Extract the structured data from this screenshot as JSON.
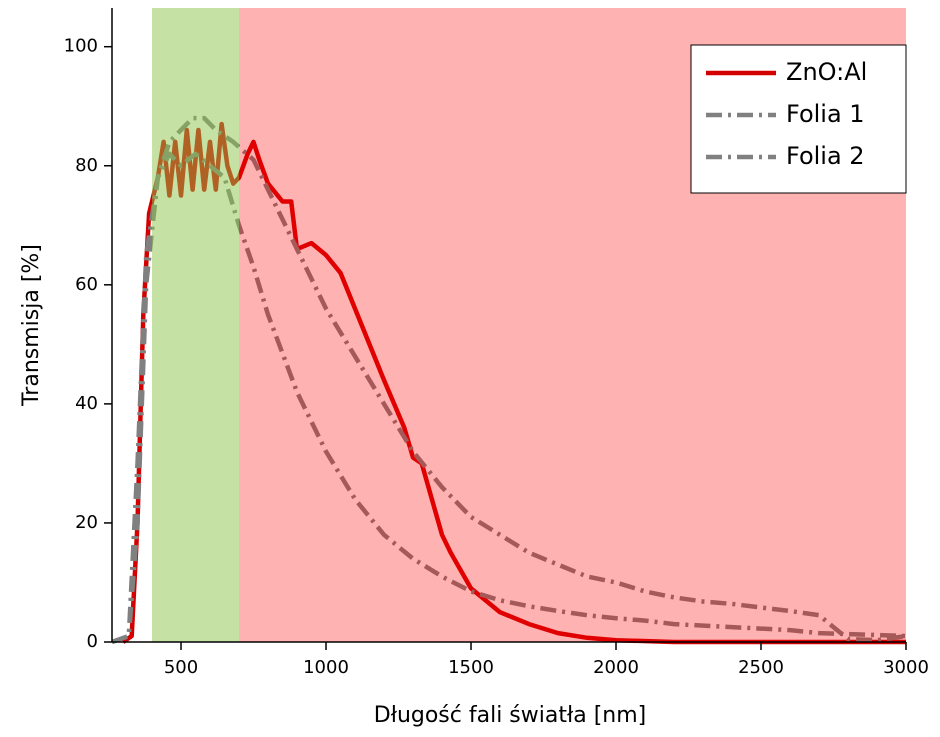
{
  "chart_data": {
    "type": "line",
    "x_label": "Długość fali światła [nm]",
    "y_label": "Transmisja [%]",
    "xlim": [
      262,
      3000
    ],
    "ylim": [
      0,
      106.5
    ],
    "xticks": [
      500,
      1000,
      1500,
      2000,
      2500,
      3000
    ],
    "yticks": [
      0,
      20,
      40,
      60,
      80,
      100
    ],
    "bands": [
      {
        "from": 400,
        "to": 700,
        "color": "#8bc34a"
      },
      {
        "from": 700,
        "to": 3000,
        "color": "#ff0000"
      }
    ],
    "legend": "upper right",
    "series": [
      {
        "name": "ZnO:Al",
        "color": "#d40000",
        "linestyle": "solid",
        "x": [
          300,
          330,
          350,
          370,
          390,
          400,
          420,
          440,
          460,
          480,
          500,
          520,
          540,
          560,
          580,
          600,
          620,
          640,
          660,
          680,
          700,
          730,
          750,
          770,
          800,
          850,
          880,
          900,
          950,
          1000,
          1050,
          1100,
          1200,
          1270,
          1300,
          1330,
          1400,
          1430,
          1500,
          1600,
          1700,
          1800,
          1900,
          2000,
          2200,
          3000
        ],
        "values": [
          0,
          1,
          20,
          55,
          72,
          74,
          78,
          84,
          75,
          84,
          75,
          86,
          76,
          86,
          76,
          84,
          76,
          87,
          80,
          77,
          78,
          82,
          84,
          81,
          77,
          74,
          74,
          66,
          67,
          65,
          62,
          56,
          44,
          36,
          31,
          30,
          18,
          15,
          9,
          5,
          3,
          1.5,
          0.7,
          0.3,
          0,
          0
        ]
      },
      {
        "name": "Folia 1",
        "color": "#808080",
        "linestyle": "dashdot",
        "x": [
          262,
          320,
          350,
          380,
          420,
          460,
          500,
          540,
          580,
          620,
          680,
          750,
          800,
          900,
          1000,
          1100,
          1200,
          1300,
          1400,
          1500,
          1600,
          1700,
          1800,
          1900,
          2000,
          2100,
          2200,
          2300,
          2400,
          2500,
          2600,
          2700,
          2750,
          2800,
          2900,
          3000
        ],
        "values": [
          0,
          1,
          20,
          60,
          78,
          84,
          86,
          88,
          88,
          86,
          84,
          81,
          76,
          66,
          56,
          48,
          40,
          32,
          26,
          21,
          18,
          15,
          13,
          11,
          10,
          8.5,
          7.5,
          6.8,
          6.4,
          5.8,
          5.2,
          4.5,
          2.5,
          0.5,
          0.3,
          1
        ]
      },
      {
        "name": "Folia 2",
        "color": "#808080",
        "linestyle": "dashdot",
        "x": [
          262,
          320,
          350,
          380,
          420,
          460,
          500,
          550,
          600,
          650,
          700,
          750,
          800,
          900,
          1000,
          1100,
          1200,
          1300,
          1400,
          1500,
          1600,
          1700,
          1800,
          1900,
          2000,
          2100,
          2200,
          2400,
          2600,
          2700,
          3000
        ],
        "values": [
          0,
          1,
          30,
          65,
          78,
          82,
          80,
          82,
          80,
          78,
          70,
          63,
          55,
          42,
          32,
          24,
          18,
          14,
          11,
          8.5,
          7,
          6,
          5.2,
          4.5,
          4,
          3.6,
          3,
          2.5,
          2,
          1.5,
          1
        ]
      }
    ]
  }
}
